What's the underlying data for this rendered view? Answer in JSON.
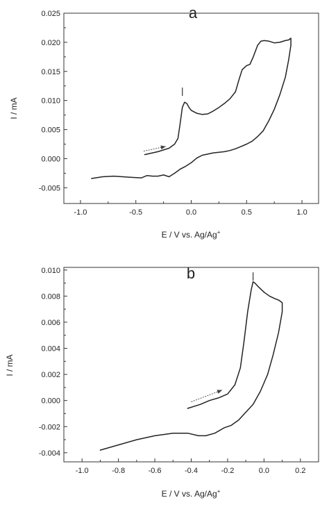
{
  "chart_data": [
    {
      "type": "line",
      "panel_label": "a",
      "xlabel_main": "E / V vs. Ag/Ag",
      "xlabel_sup": "+",
      "ylabel": "I / mA",
      "xlim": [
        -1.15,
        1.15
      ],
      "ylim": [
        -0.0077,
        0.025
      ],
      "xticks": [
        "-1.0",
        "-0.5",
        "0.0",
        "0.5",
        "1.0"
      ],
      "yticks": [
        "-0.005",
        "0.000",
        "0.005",
        "0.010",
        "0.015",
        "0.020",
        "0.025"
      ],
      "annotations": [
        {
          "text": "I",
          "x": -0.08,
          "y": 0.0115
        }
      ],
      "scan_arrow": {
        "from": [
          -0.43,
          0.0013
        ],
        "to": [
          -0.23,
          0.0021
        ]
      },
      "series": [
        {
          "x": [
            -0.42,
            -0.3,
            -0.2,
            -0.15,
            -0.12,
            -0.1,
            -0.08,
            -0.06,
            -0.04,
            -0.02,
            0.0,
            0.05,
            0.1,
            0.15,
            0.2,
            0.25,
            0.3,
            0.35,
            0.4,
            0.43,
            0.46,
            0.5,
            0.53,
            0.56,
            0.6,
            0.63,
            0.66,
            0.7,
            0.75,
            0.8,
            0.85,
            0.88,
            0.9,
            0.9,
            0.88,
            0.85,
            0.8,
            0.75,
            0.7,
            0.65,
            0.6,
            0.55,
            0.5,
            0.45,
            0.4,
            0.35,
            0.3,
            0.2,
            0.1,
            0.05,
            0.0,
            -0.05,
            -0.1,
            -0.15,
            -0.2,
            -0.25,
            -0.3,
            -0.35,
            -0.4,
            -0.45,
            -0.55,
            -0.7,
            -0.8,
            -0.9
          ],
          "y": [
            0.0007,
            0.0012,
            0.0018,
            0.0025,
            0.0035,
            0.006,
            0.0088,
            0.0097,
            0.0095,
            0.0088,
            0.0083,
            0.0078,
            0.0076,
            0.0077,
            0.0082,
            0.0088,
            0.0095,
            0.0103,
            0.0115,
            0.0135,
            0.0153,
            0.016,
            0.0162,
            0.0175,
            0.0195,
            0.0202,
            0.0203,
            0.0202,
            0.0199,
            0.02,
            0.0203,
            0.0204,
            0.0207,
            0.0195,
            0.017,
            0.014,
            0.011,
            0.0085,
            0.0065,
            0.0048,
            0.0038,
            0.003,
            0.0025,
            0.0021,
            0.0017,
            0.0014,
            0.0012,
            0.001,
            0.0006,
            0.0001,
            -0.0007,
            -0.0013,
            -0.0018,
            -0.0025,
            -0.0031,
            -0.0028,
            -0.003,
            -0.003,
            -0.0029,
            -0.0033,
            -0.0032,
            -0.003,
            -0.0031,
            -0.0034
          ]
        }
      ]
    },
    {
      "type": "line",
      "panel_label": "b",
      "xlabel_main": "E / V vs. Ag/Ag",
      "xlabel_sup": "+",
      "ylabel": "I / mA",
      "xlim": [
        -1.1,
        0.3
      ],
      "ylim": [
        -0.0047,
        0.0102
      ],
      "xticks": [
        "-1.0",
        "-0.8",
        "-0.6",
        "-0.4",
        "-0.2",
        "0.0",
        "0.2"
      ],
      "yticks": [
        "-0.004",
        "-0.002",
        "0.000",
        "0.002",
        "0.004",
        "0.006",
        "0.008",
        "0.010"
      ],
      "annotations": [
        {
          "text": "I",
          "x": -0.06,
          "y": 0.0095
        }
      ],
      "scan_arrow": {
        "from": [
          -0.4,
          -0.0001
        ],
        "to": [
          -0.23,
          0.0008
        ]
      },
      "series": [
        {
          "x": [
            -0.42,
            -0.35,
            -0.3,
            -0.25,
            -0.2,
            -0.16,
            -0.13,
            -0.11,
            -0.09,
            -0.07,
            -0.06,
            -0.05,
            -0.03,
            0.0,
            0.03,
            0.06,
            0.08,
            0.1,
            0.1,
            0.08,
            0.05,
            0.02,
            -0.02,
            -0.06,
            -0.1,
            -0.14,
            -0.18,
            -0.22,
            -0.27,
            -0.32,
            -0.36,
            -0.42,
            -0.5,
            -0.6,
            -0.7,
            -0.8,
            -0.9
          ],
          "y": [
            -0.0006,
            -0.0003,
            0.0,
            0.0002,
            0.0005,
            0.0012,
            0.0025,
            0.0045,
            0.0068,
            0.0085,
            0.0091,
            0.009,
            0.0087,
            0.0083,
            0.008,
            0.0078,
            0.0077,
            0.0075,
            0.0068,
            0.0052,
            0.0035,
            0.002,
            0.0007,
            -0.0003,
            -0.0009,
            -0.0015,
            -0.0019,
            -0.0021,
            -0.0025,
            -0.0027,
            -0.0027,
            -0.0025,
            -0.0025,
            -0.0027,
            -0.003,
            -0.0034,
            -0.0038
          ]
        }
      ]
    }
  ]
}
